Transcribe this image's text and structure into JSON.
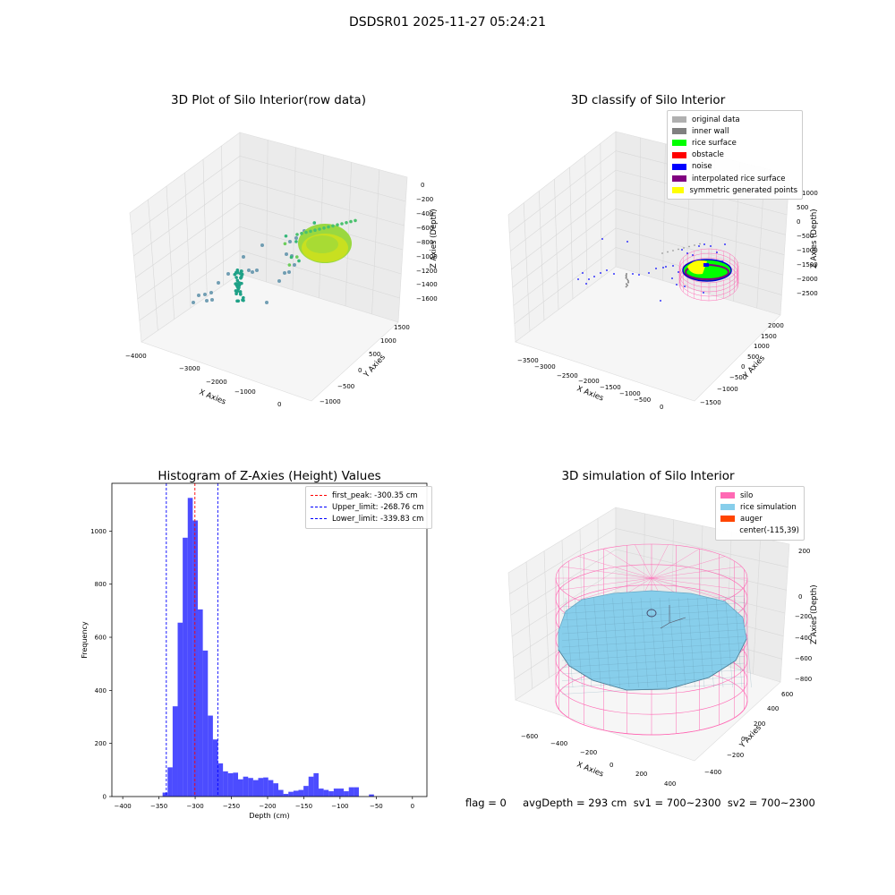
{
  "suptitle": "DSDSR01 2025-11-27 05:24:21",
  "panels": {
    "raw": {
      "title": "3D Plot of Silo Interior(row data)",
      "xlabel": "X Axies",
      "ylabel": "Y Axies",
      "zlabel": "Z Axies (Depth)",
      "xticks": [
        "−4000",
        "−3000",
        "−2000",
        "−1000",
        "0"
      ],
      "yticks": [
        "−1000",
        "−500",
        "0",
        "500",
        "1000",
        "1500"
      ],
      "zticks": [
        "0",
        "−200",
        "−400",
        "−600",
        "−800",
        "−1000",
        "−1200",
        "−1400",
        "−1600"
      ]
    },
    "classify": {
      "title": "3D classify of Silo Interior",
      "xlabel": "X Axies",
      "ylabel": "Y Axies",
      "zlabel": "Z Axies (Depth)",
      "xticks": [
        "−3500",
        "−3000",
        "−2500",
        "−2000",
        "−1500",
        "−1000",
        "−500",
        "0"
      ],
      "yticks": [
        "−1500",
        "−1000",
        "−500",
        "0",
        "500",
        "1000",
        "1500",
        "2000"
      ],
      "zticks": [
        "1000",
        "500",
        "0",
        "−500",
        "−1000",
        "−1500",
        "−2000",
        "−2500"
      ],
      "legend": [
        {
          "label": "original data",
          "color": "#b0b0b0"
        },
        {
          "label": "inner wall",
          "color": "#808080"
        },
        {
          "label": "rice surface",
          "color": "#00ff00"
        },
        {
          "label": "obstacle",
          "color": "#ff0000"
        },
        {
          "label": "noise",
          "color": "#0000ff"
        },
        {
          "label": "interpolated rice surface",
          "color": "#800080"
        },
        {
          "label": "symmetric generated points",
          "color": "#ffff00"
        }
      ]
    },
    "simulation": {
      "title": "3D simulation of Silo Interior",
      "xlabel": "X Axies",
      "ylabel": "Y Axies",
      "zlabel": "Z Axies (Depth)",
      "xticks": [
        "−600",
        "−400",
        "−200",
        "0",
        "200",
        "400"
      ],
      "yticks": [
        "−400",
        "−200",
        "0",
        "200",
        "400",
        "600"
      ],
      "zticks": [
        "200",
        "0",
        "−200",
        "−400",
        "−600",
        "−800"
      ],
      "legend": [
        {
          "label": "silo",
          "color": "#ff69b4"
        },
        {
          "label": "rice simulation",
          "color": "#87ceeb"
        },
        {
          "label": "auger",
          "color": "#ff4500"
        },
        {
          "label": "center(-115,39)",
          "color": ""
        }
      ]
    }
  },
  "chart_data": {
    "type": "bar",
    "title": "Histogram of Z-Axies (Height) Values",
    "xlabel": "Depth (cm)",
    "ylabel": "Frequency",
    "xlim": [
      -415,
      20
    ],
    "ylim": [
      0,
      1180
    ],
    "xticks": [
      -400,
      -350,
      -300,
      -250,
      -200,
      -150,
      -100,
      -50,
      0
    ],
    "yticks": [
      0,
      200,
      400,
      600,
      800,
      1000
    ],
    "bar_color": "#0000ff",
    "bin_start": -345,
    "bin_width": 6.95,
    "values": [
      15,
      110,
      340,
      655,
      975,
      1125,
      1040,
      705,
      550,
      305,
      215,
      125,
      95,
      88,
      90,
      65,
      75,
      70,
      62,
      70,
      72,
      62,
      50,
      25,
      10,
      18,
      22,
      25,
      40,
      75,
      88,
      30,
      25,
      20,
      30,
      30,
      20,
      35,
      35,
      0,
      0,
      8
    ],
    "vlines": [
      {
        "value": -300.35,
        "color": "#ff0000",
        "label": "first_peak: -300.35 cm"
      },
      {
        "value": -268.76,
        "color": "#0000ff",
        "label": "Upper_limit: -268.76 cm"
      },
      {
        "value": -339.83,
        "color": "#0000ff",
        "label": "Lower_limit: -339.83 cm"
      }
    ],
    "legend_position": "top-right"
  },
  "footer": "flag = 0     avgDepth = 293 cm  sv1 = 700~2300  sv2 = 700~2300"
}
